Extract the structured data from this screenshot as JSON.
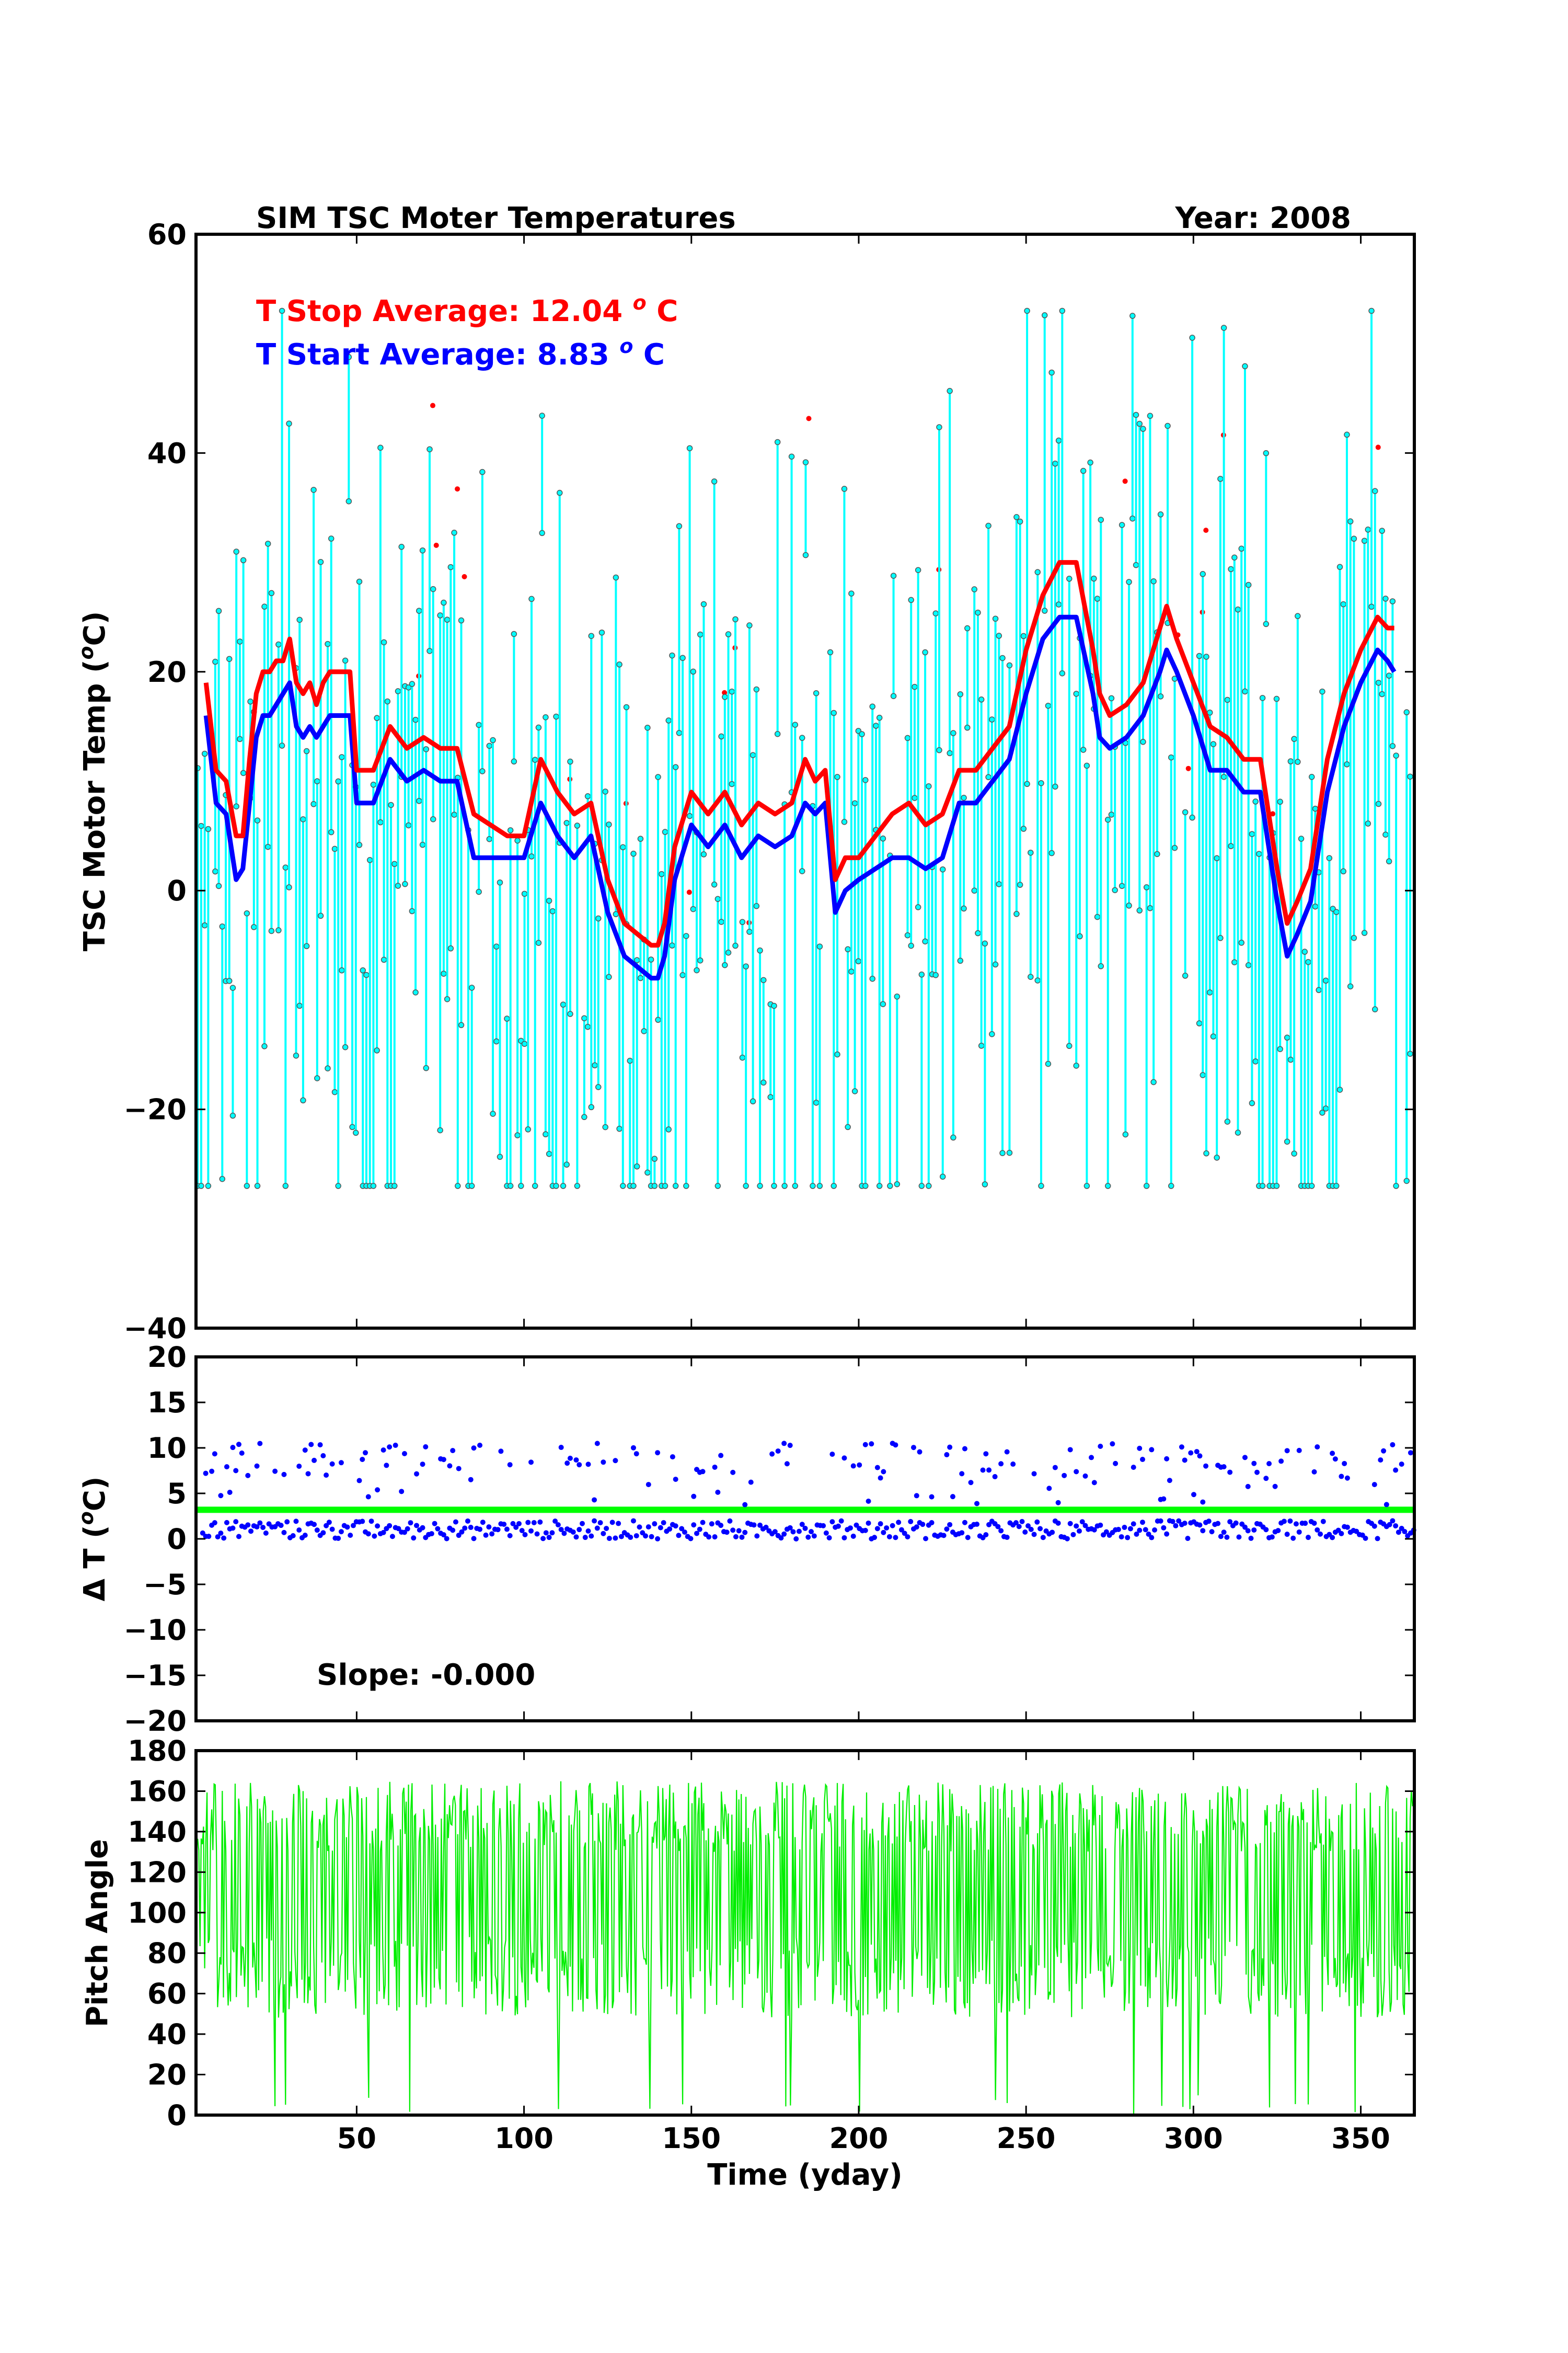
{
  "figure": {
    "title": "SIM TSC Moter Temperatures",
    "year_label": "Year: 2008",
    "x_label": "Time (yday)"
  },
  "chart_data": [
    {
      "type": "line",
      "ylabel": "TSC Motor Temp (",
      "ylabel_sup": "o",
      "ylabel_end": "C)",
      "xlim": [
        2,
        366
      ],
      "ylim": [
        -40,
        60
      ],
      "x_ticks": [
        50,
        100,
        150,
        200,
        250,
        300,
        350
      ],
      "y_ticks": [
        -40,
        -20,
        0,
        20,
        40,
        60
      ],
      "y_tick_labels": [
        "−40",
        "−20",
        "0",
        "20",
        "40",
        "60"
      ],
      "annotations": [
        {
          "name": "t-stop-average",
          "prefix": "T Stop Average:  12.04 ",
          "sup": "o",
          "suffix": " C",
          "color": "#ff0000"
        },
        {
          "name": "t-start-average",
          "prefix": "T Start Average: 8.83 ",
          "sup": "o",
          "suffix": " C",
          "color": "#0000ff"
        }
      ],
      "series": [
        {
          "name": "T Stop Average",
          "color": "#ff0000",
          "x": [
            5,
            8,
            11,
            14,
            16,
            18,
            20,
            22,
            24,
            26,
            28,
            30,
            32,
            34,
            36,
            38,
            40,
            42,
            44,
            46,
            48,
            50,
            55,
            60,
            65,
            70,
            75,
            80,
            85,
            90,
            95,
            100,
            105,
            110,
            115,
            120,
            125,
            130,
            134,
            138,
            140,
            142,
            145,
            150,
            155,
            160,
            165,
            170,
            175,
            180,
            184,
            187,
            190,
            193,
            196,
            200,
            205,
            210,
            215,
            220,
            225,
            230,
            235,
            240,
            245,
            250,
            255,
            260,
            265,
            270,
            272,
            275,
            280,
            285,
            290,
            292,
            295,
            300,
            305,
            310,
            315,
            320,
            325,
            328,
            331,
            335,
            340,
            345,
            350,
            355,
            358,
            360
          ],
          "y": [
            19,
            11,
            10,
            5,
            5,
            12,
            18,
            20,
            20,
            21,
            21,
            23,
            19,
            18,
            19,
            17,
            19,
            20,
            20,
            20,
            20,
            11,
            11,
            15,
            13,
            14,
            13,
            13,
            7,
            6,
            5,
            5,
            12,
            9,
            7,
            8,
            1,
            -3,
            -4,
            -5,
            -5,
            -3,
            4,
            9,
            7,
            9,
            6,
            8,
            7,
            8,
            12,
            10,
            11,
            1,
            3,
            3,
            5,
            7,
            8,
            6,
            7,
            11,
            11,
            13,
            15,
            22,
            27,
            30,
            30,
            22,
            18,
            16,
            17,
            19,
            24,
            26,
            23,
            19,
            15,
            14,
            12,
            12,
            2,
            -3,
            -1,
            2,
            12,
            18,
            22,
            25,
            24,
            24
          ]
        },
        {
          "name": "T Start Average",
          "color": "#0000ff",
          "x": [
            5,
            8,
            11,
            14,
            16,
            18,
            20,
            22,
            24,
            26,
            28,
            30,
            32,
            34,
            36,
            38,
            40,
            42,
            44,
            46,
            48,
            50,
            55,
            60,
            65,
            70,
            75,
            80,
            85,
            90,
            95,
            100,
            105,
            110,
            115,
            120,
            125,
            130,
            134,
            138,
            140,
            142,
            145,
            150,
            155,
            160,
            165,
            170,
            175,
            180,
            184,
            187,
            190,
            193,
            196,
            200,
            205,
            210,
            215,
            220,
            225,
            230,
            235,
            240,
            245,
            250,
            255,
            260,
            265,
            270,
            272,
            275,
            280,
            285,
            290,
            292,
            295,
            300,
            305,
            310,
            315,
            320,
            325,
            328,
            331,
            335,
            340,
            345,
            350,
            355,
            358,
            360
          ],
          "y": [
            16,
            8,
            7,
            1,
            2,
            8,
            14,
            16,
            16,
            17,
            18,
            19,
            15,
            14,
            15,
            14,
            15,
            16,
            16,
            16,
            16,
            8,
            8,
            12,
            10,
            11,
            10,
            10,
            3,
            3,
            3,
            3,
            8,
            5,
            3,
            5,
            -2,
            -6,
            -7,
            -8,
            -8,
            -6,
            1,
            6,
            4,
            6,
            3,
            5,
            4,
            5,
            8,
            7,
            8,
            -2,
            0,
            1,
            2,
            3,
            3,
            2,
            3,
            8,
            8,
            10,
            12,
            18,
            23,
            25,
            25,
            18,
            14,
            13,
            14,
            16,
            20,
            22,
            20,
            16,
            11,
            11,
            9,
            9,
            -1,
            -6,
            -4,
            -1,
            9,
            15,
            19,
            22,
            21,
            20
          ]
        }
      ]
    },
    {
      "type": "scatter",
      "ylabel": "Δ T (",
      "ylabel_sup": "o",
      "ylabel_end": "C)",
      "xlim": [
        2,
        366
      ],
      "ylim": [
        -20,
        20
      ],
      "y_ticks": [
        -20,
        -15,
        -10,
        -5,
        0,
        5,
        10,
        15,
        20
      ],
      "y_tick_labels": [
        "−20",
        "−15",
        "−10",
        "−5",
        "0",
        "5",
        "10",
        "15",
        "20"
      ],
      "fit_line": {
        "y": 3.2,
        "color": "#00ff00"
      },
      "points_color": "#0000ff",
      "slope_text": "Slope:  -0.000"
    },
    {
      "type": "line",
      "ylabel": "Pitch Angle",
      "xlim": [
        2,
        366
      ],
      "ylim": [
        0,
        180
      ],
      "y_ticks": [
        0,
        20,
        40,
        60,
        80,
        100,
        120,
        140,
        160,
        180
      ],
      "y_tick_labels": [
        "0",
        "20",
        "40",
        "60",
        "80",
        "100",
        "120",
        "140",
        "160",
        "180"
      ],
      "series_color": "#00ee00"
    }
  ]
}
